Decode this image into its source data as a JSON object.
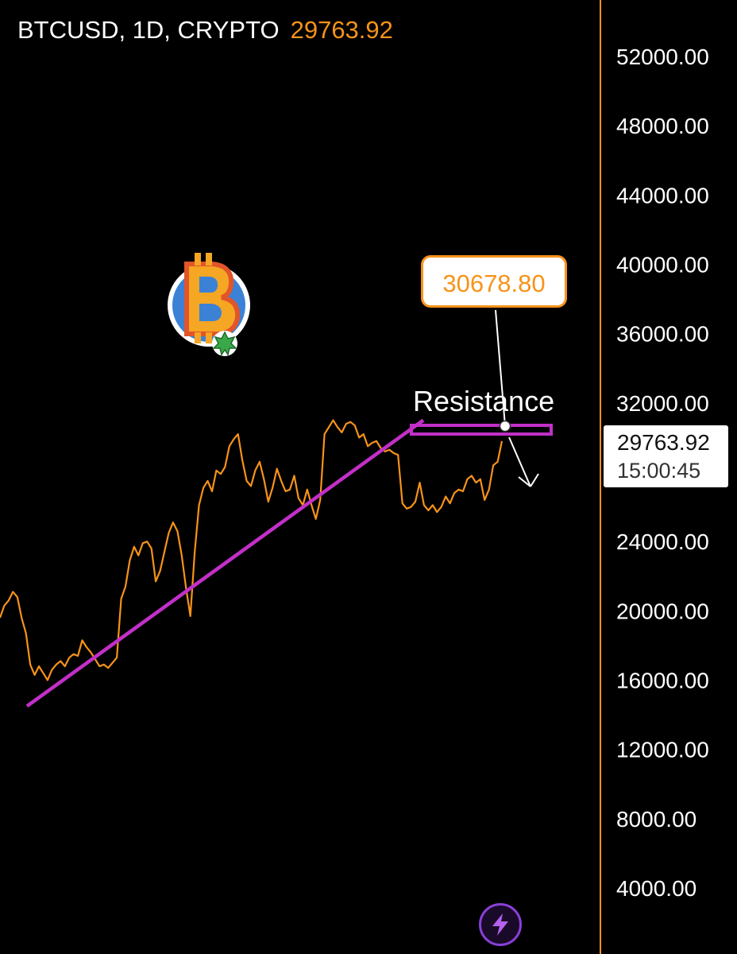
{
  "header": {
    "symbol_label": "BTCUSD, 1D, CRYPTO",
    "last_price": "29763.92"
  },
  "price_tag": {
    "price": "29763.92",
    "countdown": "15:00:45"
  },
  "callout": {
    "value": "30678.80"
  },
  "annotation": {
    "label": "Resistance"
  },
  "colors": {
    "background": "#000000",
    "price_line": "#f7931a",
    "trendline": "#c22fc8",
    "axis_border": "#f7931a",
    "text": "#ffffff"
  },
  "icons": {
    "logo": "bitcoin-logo-icon",
    "bolt": "lightning-bolt-icon"
  },
  "chart_data": {
    "type": "line",
    "title": "",
    "xlabel": "",
    "ylabel": "",
    "ylim": [
      2000,
      54000
    ],
    "yticks": [
      "52000.00",
      "48000.00",
      "44000.00",
      "40000.00",
      "36000.00",
      "32000.00",
      "24000.00",
      "20000.00",
      "16000.00",
      "12000.00",
      "8000.00",
      "4000.00"
    ],
    "grid": false,
    "series": [
      {
        "values": [
          19600,
          20300,
          20600,
          21100,
          20800,
          19600,
          18700,
          16900,
          16300,
          16800,
          16400,
          16000,
          16600,
          16900,
          17100,
          16800,
          17300,
          17500,
          17400,
          18300,
          17900,
          17600,
          17200,
          16800,
          16900,
          16700,
          17000,
          17300,
          20700,
          21400,
          22900,
          23700,
          23200,
          23900,
          24000,
          23600,
          21700,
          22300,
          23400,
          24500,
          25100,
          24600,
          23200,
          21300,
          19700,
          23400,
          26100,
          27100,
          27500,
          26900,
          28100,
          27900,
          28300,
          29500,
          29900,
          30200,
          28700,
          27500,
          27200,
          28100,
          28600,
          27600,
          26300,
          27100,
          28200,
          27500,
          26900,
          27000,
          27800,
          26500,
          26100,
          27000,
          26100,
          25300,
          26400,
          30200,
          30600,
          31000,
          30600,
          30300,
          30800,
          30900,
          30700,
          30000,
          30200,
          29500,
          29700,
          29800,
          29400,
          29200,
          29300,
          29100,
          29000,
          26200,
          25900,
          26000,
          26300,
          27400,
          26100,
          25800,
          26100,
          25700,
          26000,
          26600,
          26200,
          26800,
          27000,
          26900,
          27600,
          27800,
          27400,
          27600,
          26400,
          27000,
          28400,
          28600,
          29800
        ]
      }
    ],
    "annotations": {
      "trendline": [
        [
          0.045,
          14500
        ],
        [
          0.705,
          31000
        ]
      ],
      "resistance_level": 30000,
      "callout_value": 30678.8
    }
  }
}
